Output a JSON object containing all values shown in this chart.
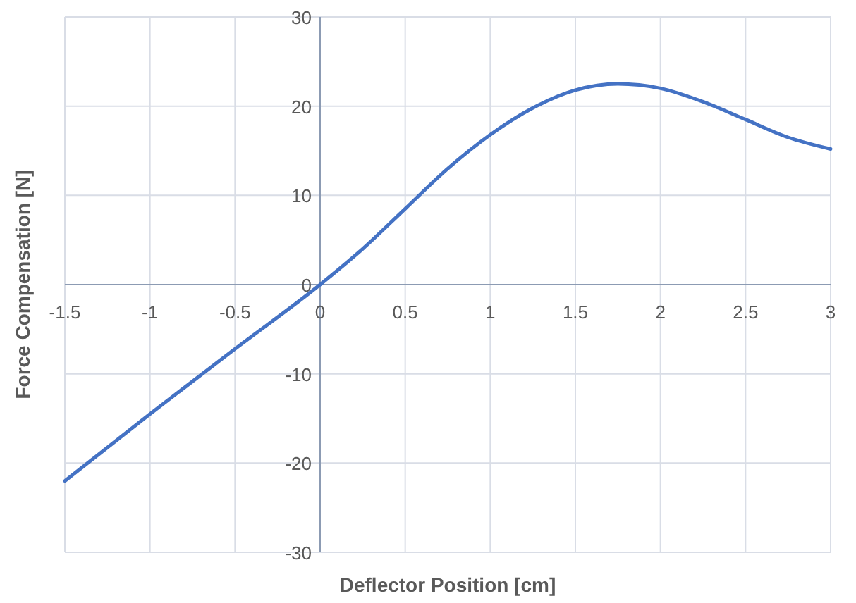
{
  "chart_data": {
    "type": "line",
    "xlabel": "Deflector Position [cm]",
    "ylabel": "Force Compensation [N]",
    "xlim": [
      -1.5,
      3
    ],
    "xticks": [
      -1.5,
      -1,
      -0.5,
      0,
      0.5,
      1,
      1.5,
      2,
      2.5,
      3
    ],
    "ylim": [
      -30,
      30
    ],
    "yticks": [
      -30,
      -20,
      -10,
      0,
      10,
      20,
      30
    ],
    "grid": true,
    "series": [
      {
        "color": "#4472c4",
        "x": [
          -1.5,
          -1,
          -0.5,
          0,
          0.25,
          0.5,
          0.75,
          1,
          1.25,
          1.5,
          1.75,
          2,
          2.25,
          2.5,
          2.75,
          3
        ],
        "values": [
          -22,
          -14.5,
          -7.2,
          0,
          4,
          8.5,
          13,
          16.8,
          19.8,
          21.8,
          22.5,
          22,
          20.5,
          18.5,
          16.5,
          15.2
        ]
      }
    ]
  }
}
